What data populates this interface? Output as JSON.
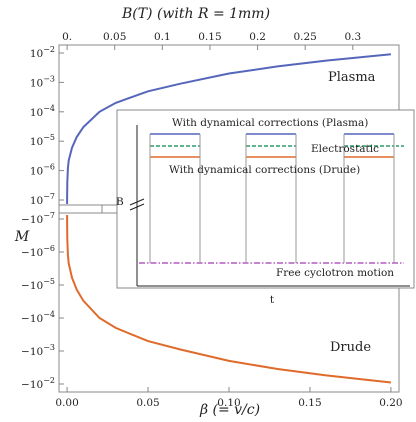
{
  "chart_data": [
    {
      "type": "line",
      "xlabel": "β (= v/c)",
      "ylabel": "M",
      "top_axis_label": "B(T)    (with R = 1mm)",
      "x_range": [
        -0.005,
        0.205
      ],
      "x_ticks": [
        0.0,
        0.05,
        0.1,
        0.15,
        0.2
      ],
      "x_tick_labels": [
        "0.00",
        "0.05",
        "0.10",
        "0.15",
        "0.20"
      ],
      "top_ticks": [
        0.0,
        0.05,
        0.1,
        0.15,
        0.2,
        0.25,
        0.3
      ],
      "top_tick_labels": [
        "0.",
        "0.05",
        "0.1",
        "0.15",
        "0.2",
        "0.25",
        "0.3"
      ],
      "top_axis_B_per_beta": 1.7,
      "y_scale": "signed-log",
      "y_ticks_positive": [
        "10^-2",
        "10^-3",
        "10^-4",
        "10^-5",
        "10^-6",
        "10^-7"
      ],
      "y_ticks_negative": [
        "-10^-7",
        "-10^-6",
        "-10^-5",
        "-10^-4",
        "-10^-3",
        "-10^-2"
      ],
      "series": [
        {
          "name": "Plasma",
          "color": "#5566bb",
          "x": [
            1e-05,
            0.0001,
            0.0005,
            0.001,
            0.003,
            0.006,
            0.01,
            0.02,
            0.03,
            0.05,
            0.07,
            0.1,
            0.13,
            0.16,
            0.2
          ],
          "y": [
            1e-07,
            4e-07,
            1.2e-06,
            2.2e-06,
            6e-06,
            1.4e-05,
            3e-05,
            0.0001,
            0.0002,
            0.0005,
            0.0009,
            0.002,
            0.0035,
            0.0055,
            0.009
          ]
        },
        {
          "name": "Drude",
          "color": "#e06a2a",
          "x": [
            1e-05,
            0.0001,
            0.0005,
            0.001,
            0.003,
            0.006,
            0.01,
            0.02,
            0.03,
            0.05,
            0.07,
            0.1,
            0.13,
            0.16,
            0.2
          ],
          "y": [
            -1e-07,
            -4e-07,
            -1.2e-06,
            -2.2e-06,
            -6e-06,
            -1.4e-05,
            -3e-05,
            -0.0001,
            -0.0002,
            -0.0005,
            -0.0009,
            -0.002,
            -0.0035,
            -0.0055,
            -0.009
          ]
        }
      ]
    },
    {
      "type": "line",
      "role": "inset",
      "ylabel": "B",
      "xlabel": "t",
      "annotations": {
        "plasma": "With dynamical corrections (Plasma)",
        "electrostatic": "Electrostatic",
        "drude": "With dynamical corrections (Drude)",
        "free": "Free cyclotron motion"
      },
      "colors": {
        "plasma": "#5566bb",
        "electrostatic": "#2e9a6a",
        "drude": "#e06a2a",
        "free": "#a03ab0",
        "pulse": "#999999"
      }
    }
  ]
}
